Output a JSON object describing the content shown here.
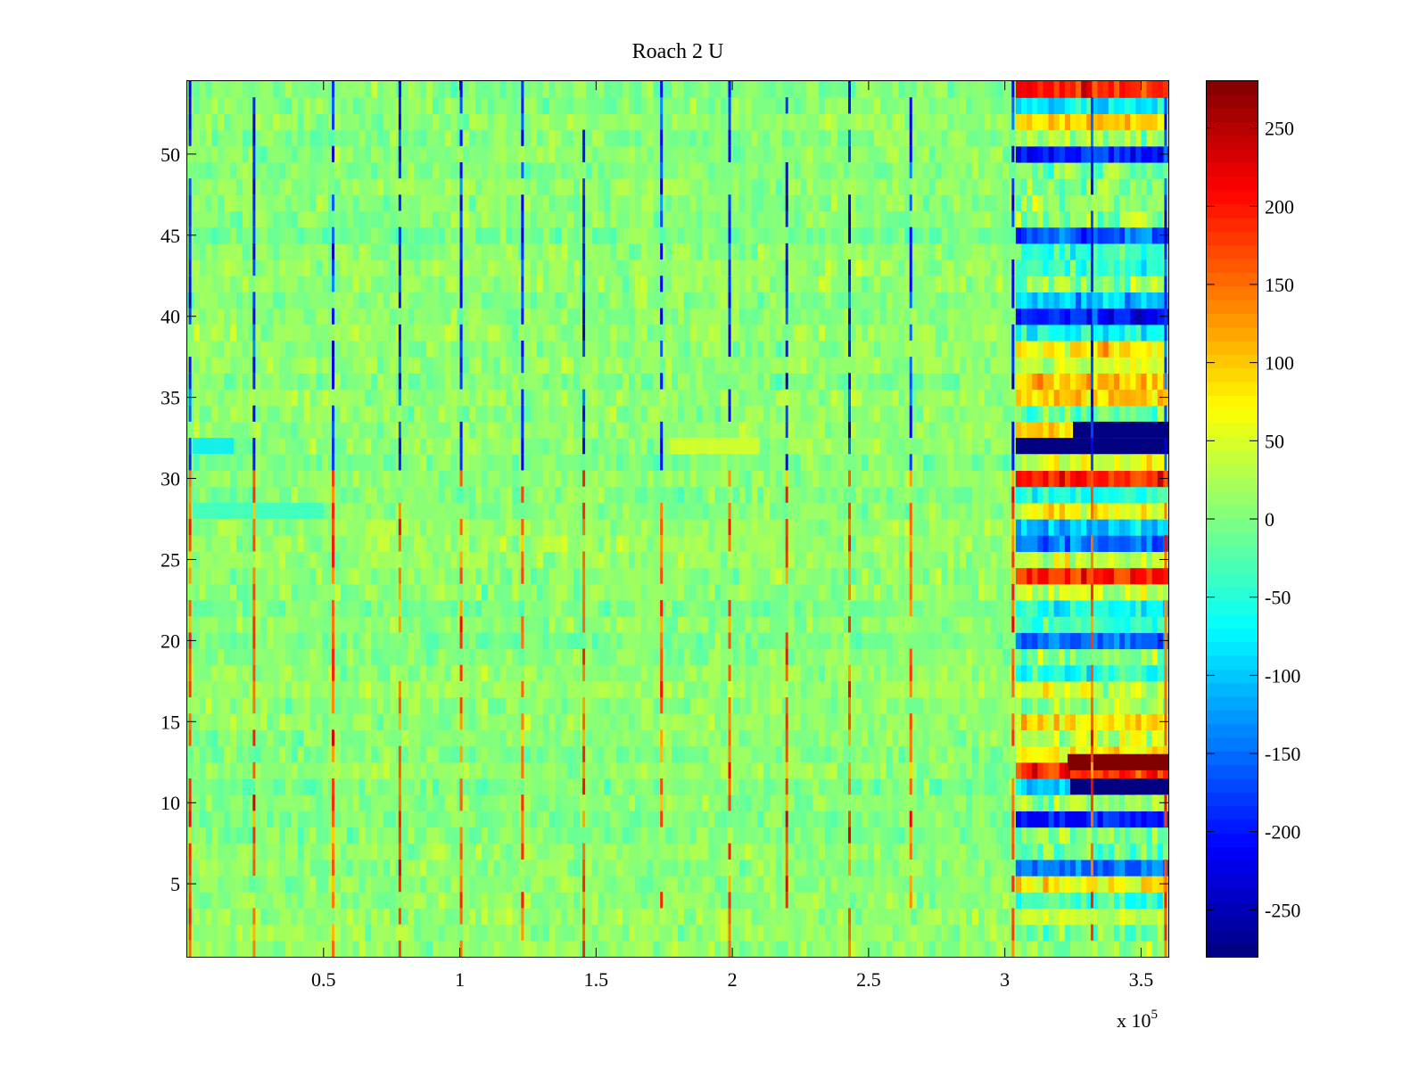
{
  "chart_data": {
    "type": "heatmap",
    "title": "Roach 2 U",
    "xlabel": "",
    "ylabel": "",
    "x_multiplier_label": {
      "base": "x 10",
      "exponent": "5"
    },
    "xlim": [
      0,
      3.6
    ],
    "ylim": [
      0.5,
      54.5
    ],
    "x_ticks": [
      0.5,
      1,
      1.5,
      2,
      2.5,
      3,
      3.5
    ],
    "x_tick_labels": [
      "0.5",
      "1",
      "1.5",
      "2",
      "2.5",
      "3",
      "3.5"
    ],
    "y_ticks": [
      5,
      10,
      15,
      20,
      25,
      30,
      35,
      40,
      45,
      50
    ],
    "y_tick_labels": [
      "5",
      "10",
      "15",
      "20",
      "25",
      "30",
      "35",
      "40",
      "45",
      "50"
    ],
    "rows": 54,
    "colormap": "jet",
    "clim": [
      -280,
      280
    ],
    "colorbar_ticks": [
      250,
      200,
      150,
      100,
      50,
      0,
      -50,
      -100,
      -150,
      -200,
      -250
    ],
    "colorbar_tick_labels": [
      "250",
      "200",
      "150",
      "100",
      "50",
      "0",
      "-50",
      "-100",
      "-150",
      "-200",
      "-250"
    ],
    "background_value_mean": 5,
    "background_value_spread": 25,
    "periodic_spike_positions": [
      0.01,
      0.245,
      0.535,
      0.78,
      1.005,
      1.23,
      1.455,
      1.74,
      1.99,
      2.2,
      2.43,
      2.655,
      3.03,
      3.32,
      3.59
    ],
    "spike_values": {
      "low_rows_value": 160,
      "high_rows_value": -190,
      "split_row": 31
    },
    "right_block_start": 3.04,
    "right_block_value_levels": [
      -280,
      -220,
      -150,
      -80,
      60,
      110,
      140,
      280
    ],
    "saturated_bands": [
      {
        "row": 12.5,
        "x_start": 3.23,
        "x_end": 3.6,
        "value": 280
      },
      {
        "row": 11,
        "x_start": 3.24,
        "x_end": 3.6,
        "value": -280
      },
      {
        "row": 32,
        "x_start": 3.04,
        "x_end": 3.6,
        "value": -280
      },
      {
        "row": 33,
        "x_start": 3.25,
        "x_end": 3.6,
        "value": -280
      }
    ],
    "notable_row_bands": [
      {
        "row": 32,
        "x_start": 0.02,
        "x_end": 0.17,
        "value": -80
      },
      {
        "row": 32,
        "x_start": 1.77,
        "x_end": 2.1,
        "value": 50
      },
      {
        "row": 28,
        "x_start": 0.02,
        "x_end": 0.5,
        "value": -40
      }
    ],
    "colors": {
      "frame": "#000000",
      "background": "#ffffff"
    }
  }
}
